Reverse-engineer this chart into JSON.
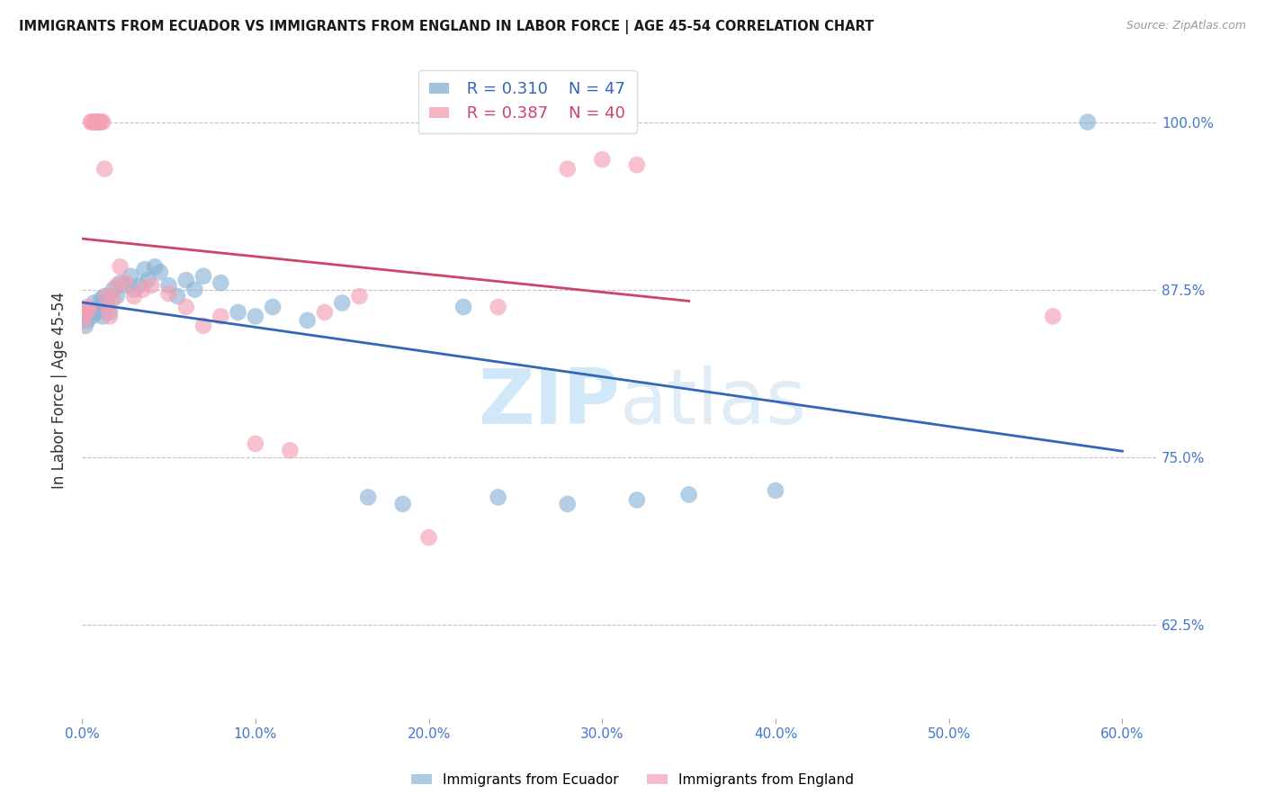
{
  "title": "IMMIGRANTS FROM ECUADOR VS IMMIGRANTS FROM ENGLAND IN LABOR FORCE | AGE 45-54 CORRELATION CHART",
  "source": "Source: ZipAtlas.com",
  "ylabel": "In Labor Force | Age 45-54",
  "ecuador_R": 0.31,
  "ecuador_N": 47,
  "england_R": 0.387,
  "england_N": 40,
  "ecuador_color": "#8ab4d8",
  "england_color": "#f4a0b5",
  "ecuador_line_color": "#3366bb",
  "england_line_color": "#cc4466",
  "watermark_color": "#d0e8f8",
  "xlim": [
    0.0,
    0.62
  ],
  "ylim": [
    0.555,
    1.045
  ],
  "xtick_vals": [
    0.0,
    0.1,
    0.2,
    0.3,
    0.4,
    0.5,
    0.6
  ],
  "xtick_labels": [
    "0.0%",
    "10.0%",
    "20.0%",
    "30.0%",
    "40.0%",
    "50.0%",
    "60.0%"
  ],
  "ytick_vals": [
    0.625,
    0.75,
    0.875,
    1.0
  ],
  "ytick_labels": [
    "62.5%",
    "75.0%",
    "87.5%",
    "100.0%"
  ],
  "ecuador_x": [
    0.001,
    0.002,
    0.003,
    0.004,
    0.005,
    0.006,
    0.007,
    0.008,
    0.009,
    0.01,
    0.011,
    0.012,
    0.013,
    0.014,
    0.015,
    0.016,
    0.018,
    0.02,
    0.022,
    0.025,
    0.028,
    0.03,
    0.033,
    0.036,
    0.038,
    0.042,
    0.045,
    0.05,
    0.055,
    0.06,
    0.065,
    0.07,
    0.08,
    0.09,
    0.1,
    0.11,
    0.13,
    0.15,
    0.165,
    0.185,
    0.22,
    0.24,
    0.28,
    0.32,
    0.35,
    0.4,
    0.58
  ],
  "ecuador_y": [
    0.855,
    0.848,
    0.852,
    0.858,
    0.86,
    0.855,
    0.865,
    0.86,
    0.858,
    0.862,
    0.868,
    0.855,
    0.87,
    0.865,
    0.862,
    0.858,
    0.875,
    0.87,
    0.88,
    0.878,
    0.885,
    0.875,
    0.878,
    0.89,
    0.882,
    0.892,
    0.888,
    0.878,
    0.87,
    0.882,
    0.875,
    0.885,
    0.88,
    0.858,
    0.855,
    0.862,
    0.852,
    0.865,
    0.72,
    0.715,
    0.862,
    0.72,
    0.715,
    0.718,
    0.722,
    0.725,
    1.0
  ],
  "england_x": [
    0.001,
    0.002,
    0.003,
    0.004,
    0.005,
    0.006,
    0.007,
    0.008,
    0.008,
    0.009,
    0.009,
    0.01,
    0.01,
    0.011,
    0.012,
    0.013,
    0.014,
    0.015,
    0.016,
    0.018,
    0.02,
    0.022,
    0.025,
    0.03,
    0.035,
    0.04,
    0.05,
    0.06,
    0.07,
    0.08,
    0.1,
    0.12,
    0.14,
    0.16,
    0.2,
    0.24,
    0.28,
    0.3,
    0.32,
    0.56
  ],
  "england_y": [
    0.852,
    0.858,
    0.862,
    0.86,
    1.0,
    1.0,
    1.0,
    1.0,
    1.0,
    1.0,
    1.0,
    1.0,
    1.0,
    1.0,
    1.0,
    0.965,
    0.87,
    0.86,
    0.855,
    0.868,
    0.878,
    0.892,
    0.88,
    0.87,
    0.875,
    0.878,
    0.872,
    0.862,
    0.848,
    0.855,
    0.76,
    0.755,
    0.858,
    0.87,
    0.69,
    0.862,
    0.965,
    0.972,
    0.968,
    0.855
  ]
}
